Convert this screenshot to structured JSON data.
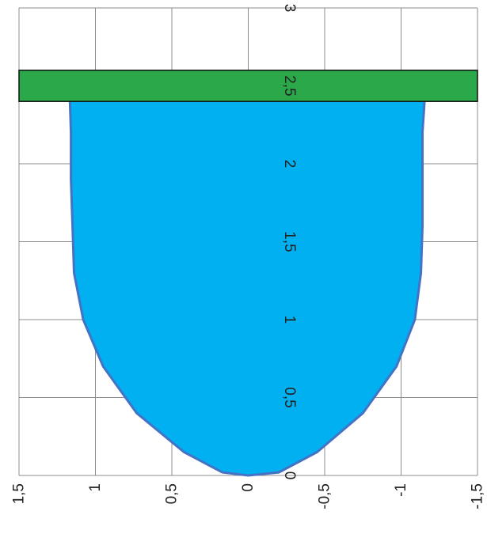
{
  "chart_data": {
    "type": "area",
    "orientation": "rotated",
    "x_axis": {
      "range": [
        1.5,
        -1.5
      ],
      "ticks": [
        "1,5",
        "1",
        "0,5",
        "0",
        "-0,5",
        "-1",
        "-1,5"
      ],
      "tick_values": [
        1.5,
        1,
        0.5,
        0,
        -0.5,
        -1,
        -1.5
      ]
    },
    "y_axis": {
      "range": [
        0,
        3
      ],
      "ticks": [
        "0",
        "0,5",
        "1",
        "1,5",
        "2",
        "2,5",
        "3"
      ],
      "tick_values": [
        0,
        0.5,
        1,
        1.5,
        2,
        2.5,
        3
      ]
    },
    "grid": true,
    "legend": "none",
    "series": [
      {
        "type": "area",
        "color": "#00b0f0",
        "line_color": "#4472c4",
        "points": [
          [
            1.17,
            2.5
          ],
          [
            1.16,
            2.2
          ],
          [
            1.16,
            1.9
          ],
          [
            1.15,
            1.6
          ],
          [
            1.14,
            1.3
          ],
          [
            1.08,
            1.0
          ],
          [
            0.95,
            0.7
          ],
          [
            0.73,
            0.4
          ],
          [
            0.42,
            0.15
          ],
          [
            0.17,
            0.02
          ],
          [
            0.0,
            0.0
          ],
          [
            -0.2,
            0.02
          ],
          [
            -0.45,
            0.15
          ],
          [
            -0.75,
            0.4
          ],
          [
            -0.97,
            0.7
          ],
          [
            -1.09,
            1.0
          ],
          [
            -1.13,
            1.3
          ],
          [
            -1.14,
            1.6
          ],
          [
            -1.14,
            1.9
          ],
          [
            -1.14,
            2.2
          ],
          [
            -1.16,
            2.5
          ]
        ]
      },
      {
        "type": "bar",
        "color": "#2aa84a",
        "x_range": [
          1.5,
          -1.5
        ],
        "y_range": [
          2.4,
          2.6
        ]
      }
    ]
  }
}
